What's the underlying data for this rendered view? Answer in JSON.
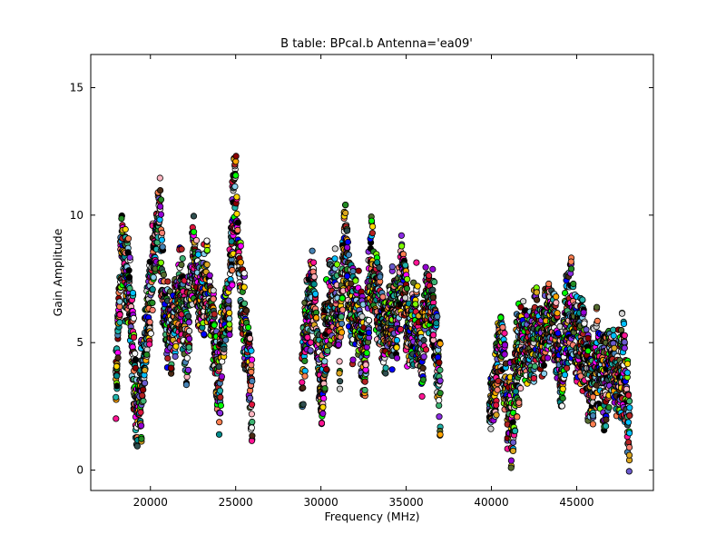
{
  "chart_data": {
    "type": "scatter",
    "title": "B table: BPcal.b      Antenna='ea09'",
    "xlabel": "Frequency (MHz)",
    "ylabel": "Gain Amplitude",
    "xlim": [
      16500,
      49500
    ],
    "ylim": [
      -0.8,
      16.3
    ],
    "xticks": [
      20000,
      25000,
      30000,
      35000,
      40000,
      45000
    ],
    "yticks": [
      0,
      5,
      10,
      15
    ],
    "grid": false,
    "legend": "none",
    "marker": "circle",
    "marker_edge_color": "#000000",
    "palette": [
      "#000000",
      "#2f4f4f",
      "#4a2a14",
      "#ff7f50",
      "#fa8072",
      "#ffa500",
      "#daa520",
      "#ffd700",
      "#00ff00",
      "#7cfc00",
      "#3cb371",
      "#20b2aa",
      "#008b8b",
      "#00bfff",
      "#87ceeb",
      "#4682b4",
      "#0000ff",
      "#6a5acd",
      "#8a2be2",
      "#9400d3",
      "#ff00ff",
      "#ff1493",
      "#ffb6c1",
      "#dc143c",
      "#b22222",
      "#8b0000",
      "#f5f5f5",
      "#d3d3d3",
      "#228b22",
      "#556b2f"
    ],
    "spectral_windows": [
      {
        "x_start": 17980,
        "x_end": 26000,
        "profile": [
          [
            17980,
            3.3
          ],
          [
            18300,
            8.8
          ],
          [
            18800,
            6.8
          ],
          [
            19200,
            2.2
          ],
          [
            19500,
            3.2
          ],
          [
            19800,
            5.8
          ],
          [
            20300,
            8.8
          ],
          [
            20500,
            10.3
          ],
          [
            20800,
            6.4
          ],
          [
            21100,
            5.5
          ],
          [
            21500,
            6.2
          ],
          [
            21800,
            7.2
          ],
          [
            22100,
            4.5
          ],
          [
            22500,
            8.6
          ],
          [
            22900,
            6.8
          ],
          [
            23300,
            7.3
          ],
          [
            23700,
            5.5
          ],
          [
            24000,
            3.0
          ],
          [
            24300,
            5.8
          ],
          [
            24600,
            6.6
          ],
          [
            24950,
            11.4
          ],
          [
            25200,
            8.0
          ],
          [
            25500,
            6.2
          ],
          [
            25750,
            4.5
          ],
          [
            26000,
            2.5
          ]
        ]
      },
      {
        "x_start": 28900,
        "x_end": 37000,
        "profile": [
          [
            28900,
            3.6
          ],
          [
            29200,
            6.2
          ],
          [
            29600,
            6.8
          ],
          [
            30000,
            2.8
          ],
          [
            30400,
            6.3
          ],
          [
            30800,
            6.9
          ],
          [
            31100,
            5.2
          ],
          [
            31400,
            9.2
          ],
          [
            31800,
            6.0
          ],
          [
            32200,
            6.2
          ],
          [
            32600,
            4.0
          ],
          [
            32900,
            8.3
          ],
          [
            33300,
            6.8
          ],
          [
            33700,
            5.2
          ],
          [
            34100,
            5.9
          ],
          [
            34500,
            6.3
          ],
          [
            34800,
            7.8
          ],
          [
            35200,
            5.2
          ],
          [
            35600,
            6.1
          ],
          [
            35900,
            4.3
          ],
          [
            36200,
            6.6
          ],
          [
            36600,
            6.3
          ],
          [
            36800,
            4.5
          ],
          [
            37000,
            3.2
          ]
        ]
      },
      {
        "x_start": 39900,
        "x_end": 48100,
        "profile": [
          [
            39900,
            2.4
          ],
          [
            40200,
            3.2
          ],
          [
            40500,
            5.2
          ],
          [
            40900,
            3.0
          ],
          [
            41200,
            1.9
          ],
          [
            41500,
            4.2
          ],
          [
            41800,
            5.2
          ],
          [
            42200,
            4.6
          ],
          [
            42600,
            5.8
          ],
          [
            43000,
            4.9
          ],
          [
            43400,
            6.1
          ],
          [
            43800,
            5.4
          ],
          [
            44100,
            3.6
          ],
          [
            44400,
            5.8
          ],
          [
            44700,
            6.3
          ],
          [
            45000,
            5.1
          ],
          [
            45400,
            4.9
          ],
          [
            45800,
            3.3
          ],
          [
            46200,
            4.4
          ],
          [
            46600,
            3.4
          ],
          [
            47000,
            4.4
          ],
          [
            47300,
            3.6
          ],
          [
            47700,
            4.2
          ],
          [
            48100,
            1.6
          ]
        ]
      }
    ]
  }
}
